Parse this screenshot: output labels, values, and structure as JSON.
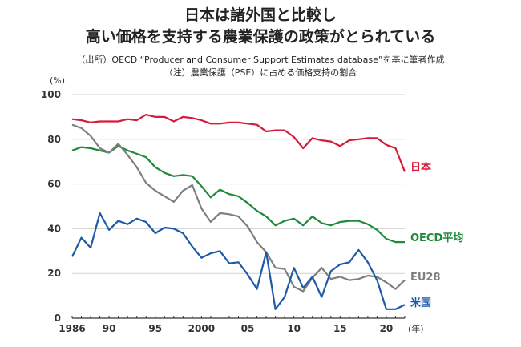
{
  "header": {
    "title_line1": "日本は諸外国と比較し",
    "title_line2": "高い価格を支持する農業保護の政策がとられている",
    "source": "（出所）OECD “Producer and Consumer Support Estimates database”を基に筆者作成",
    "note": "（注）農業保護（PSE）に占める価格支持の割合"
  },
  "chart_data": {
    "type": "line",
    "title": "日本は諸外国と比較し 高い価格を支持する農業保護の政策がとられている",
    "y_unit_label": "(%)",
    "x_unit_label": "(年)",
    "ylim": [
      0,
      100
    ],
    "yticks": [
      0,
      20,
      40,
      60,
      80,
      100
    ],
    "xlim": [
      1986,
      2022
    ],
    "xticks": [
      {
        "value": 1986,
        "label": "1986"
      },
      {
        "value": 1990,
        "label": "90"
      },
      {
        "value": 1995,
        "label": "95"
      },
      {
        "value": 2000,
        "label": "2000"
      },
      {
        "value": 2005,
        "label": "05"
      },
      {
        "value": 2010,
        "label": "10"
      },
      {
        "value": 2015,
        "label": "15"
      },
      {
        "value": 2020,
        "label": "20"
      }
    ],
    "grid": true,
    "legend": "inline labels at right end of each line",
    "x": [
      1986,
      1987,
      1988,
      1989,
      1990,
      1991,
      1992,
      1993,
      1994,
      1995,
      1996,
      1997,
      1998,
      1999,
      2000,
      2001,
      2002,
      2003,
      2004,
      2005,
      2006,
      2007,
      2008,
      2009,
      2010,
      2011,
      2012,
      2013,
      2014,
      2015,
      2016,
      2017,
      2018,
      2019,
      2020,
      2021,
      2022
    ],
    "series": [
      {
        "name": "日本",
        "color": "#d7193a",
        "values": [
          89,
          88.5,
          87.5,
          88,
          88,
          88,
          89,
          88.5,
          91,
          90,
          90,
          88,
          90,
          89.5,
          88.5,
          87,
          87,
          87.5,
          87.5,
          87,
          86.5,
          83.5,
          84,
          84,
          81,
          76,
          80.5,
          79.5,
          79,
          77,
          79.5,
          80,
          80.5,
          80.5,
          77.5,
          76,
          65.5
        ]
      },
      {
        "name": "OECD平均",
        "color": "#1e8a3a",
        "values": [
          75,
          76.5,
          76,
          75,
          74,
          77,
          75,
          73.5,
          72,
          67.5,
          65,
          63.5,
          64,
          63.5,
          59,
          54,
          57.5,
          55.5,
          54.5,
          51.5,
          48,
          45.5,
          41.5,
          43.5,
          44.5,
          41.5,
          45.5,
          42.5,
          41.5,
          43,
          43.5,
          43.5,
          42,
          39.5,
          35.5,
          34,
          34
        ]
      },
      {
        "name": "EU28",
        "color": "#7f7f7f",
        "values": [
          86.5,
          85,
          81.5,
          76,
          74,
          78,
          73,
          67.5,
          60.5,
          57,
          54.5,
          52,
          57,
          59.5,
          49,
          43,
          47,
          46.5,
          45.5,
          41,
          34,
          29.5,
          22.5,
          22,
          14,
          12,
          18,
          22.5,
          17.5,
          18.5,
          17,
          17.5,
          19,
          18.5,
          16,
          13,
          17
        ]
      },
      {
        "name": "米国",
        "color": "#1f5aa6",
        "values": [
          27.5,
          36,
          31.5,
          47,
          39.5,
          43.5,
          42,
          44.5,
          43,
          38,
          40.5,
          40,
          38,
          32,
          27,
          29,
          30,
          24.5,
          25,
          19.5,
          13,
          29.5,
          4,
          9.5,
          22.5,
          13.5,
          18.5,
          9.5,
          21,
          24,
          25,
          30.5,
          25,
          17,
          4,
          4,
          6
        ]
      }
    ]
  }
}
